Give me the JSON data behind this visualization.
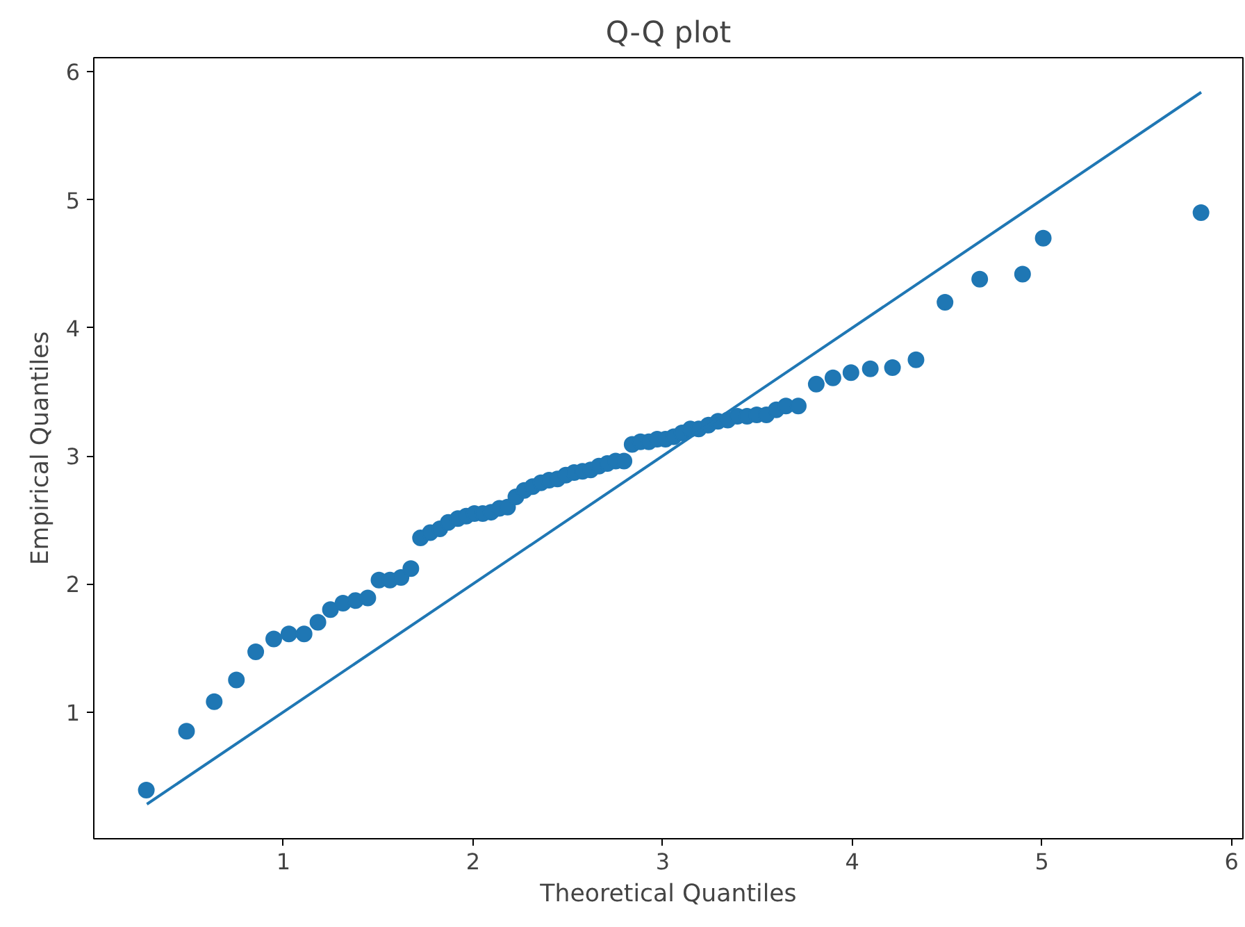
{
  "chart_data": {
    "type": "scatter",
    "title": "Q-Q plot",
    "xlabel": "Theoretical Quantiles",
    "ylabel": "Empirical Quantiles",
    "xlim": [
      0.0,
      6.06
    ],
    "ylim": [
      0.01,
      6.11
    ],
    "xticks": [
      1,
      2,
      3,
      4,
      5,
      6
    ],
    "yticks": [
      1,
      2,
      3,
      4,
      5,
      6
    ],
    "grid": false,
    "series": [
      {
        "marker": "circle",
        "color": "#1f77b4",
        "x": [
          0.277,
          0.489,
          0.635,
          0.752,
          0.854,
          0.949,
          1.029,
          1.109,
          1.182,
          1.248,
          1.314,
          1.38,
          1.445,
          1.504,
          1.562,
          1.62,
          1.672,
          1.723,
          1.774,
          1.825,
          1.869,
          1.92,
          1.964,
          2.007,
          2.051,
          2.095,
          2.139,
          2.182,
          2.226,
          2.27,
          2.314,
          2.358,
          2.401,
          2.445,
          2.489,
          2.533,
          2.577,
          2.62,
          2.664,
          2.708,
          2.752,
          2.796,
          2.839,
          2.883,
          2.927,
          2.971,
          3.015,
          3.058,
          3.102,
          3.146,
          3.19,
          3.241,
          3.292,
          3.343,
          3.394,
          3.445,
          3.496,
          3.547,
          3.599,
          3.65,
          3.715,
          3.81,
          3.898,
          3.993,
          4.095,
          4.212,
          4.336,
          4.489,
          4.672,
          4.898,
          5.007,
          5.839
        ],
        "values": [
          0.39,
          0.85,
          1.08,
          1.25,
          1.47,
          1.57,
          1.61,
          1.61,
          1.7,
          1.8,
          1.85,
          1.87,
          1.89,
          2.03,
          2.03,
          2.05,
          2.12,
          2.36,
          2.4,
          2.43,
          2.48,
          2.51,
          2.53,
          2.55,
          2.55,
          2.56,
          2.59,
          2.6,
          2.68,
          2.73,
          2.76,
          2.79,
          2.81,
          2.82,
          2.85,
          2.87,
          2.88,
          2.89,
          2.92,
          2.94,
          2.96,
          2.96,
          3.09,
          3.11,
          3.11,
          3.13,
          3.13,
          3.15,
          3.18,
          3.21,
          3.21,
          3.24,
          3.27,
          3.28,
          3.31,
          3.31,
          3.32,
          3.32,
          3.36,
          3.39,
          3.39,
          3.56,
          3.61,
          3.65,
          3.68,
          3.69,
          3.75,
          4.2,
          4.38,
          4.42,
          4.7,
          4.9
        ]
      },
      {
        "type": "line",
        "color": "#1f77b4",
        "x": [
          0.28,
          5.84
        ],
        "values": [
          0.28,
          5.84
        ]
      }
    ]
  }
}
